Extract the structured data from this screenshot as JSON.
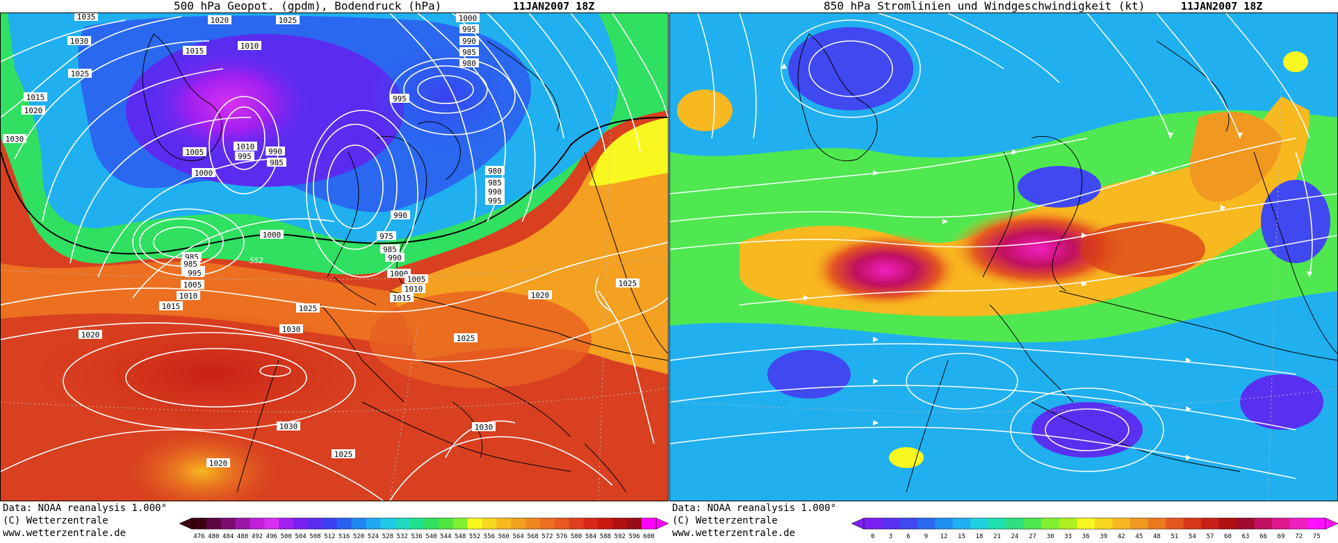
{
  "left": {
    "title": "500 hPa Geopot. (gpdm), Bodendruck (hPa)",
    "date": "11JAN2007 18Z",
    "footer": {
      "data_source": "Data: NOAA reanalysis 1.000°",
      "copyright": "(C) Wetterzentrale",
      "url": "www.wetterzentrale.de"
    },
    "colorbar": {
      "ticks": [
        "476",
        "480",
        "484",
        "488",
        "492",
        "496",
        "500",
        "504",
        "508",
        "512",
        "516",
        "520",
        "524",
        "528",
        "532",
        "536",
        "540",
        "544",
        "548",
        "552",
        "556",
        "560",
        "564",
        "568",
        "572",
        "576",
        "580",
        "584",
        "588",
        "592",
        "596",
        "600"
      ],
      "colors": [
        "#3a0010",
        "#5a0640",
        "#7a0c70",
        "#9a18a8",
        "#c020d8",
        "#d830f0",
        "#a020f0",
        "#7a20f0",
        "#5a2cf0",
        "#3a40f0",
        "#2a60f0",
        "#2088f0",
        "#20a8f0",
        "#20c8e8",
        "#20d8c0",
        "#20e090",
        "#30e060",
        "#50e840",
        "#80f030",
        "#f8f820",
        "#f8d820",
        "#f8b820",
        "#f4a020",
        "#f08820",
        "#ec7020",
        "#e85820",
        "#e04020",
        "#d82818",
        "#c81810",
        "#b01010",
        "#980c18",
        "#ff00ff"
      ]
    },
    "isobars": [
      "1035",
      "1020",
      "1025",
      "1000",
      "995",
      "990",
      "985",
      "980",
      "1030",
      "1010",
      "1015",
      "1025",
      "1015",
      "1020",
      "1030",
      "1005",
      "1010",
      "995",
      "990",
      "1000",
      "1000",
      "985",
      "995",
      "985",
      "980",
      "985",
      "990",
      "995",
      "1000",
      "975",
      "985",
      "990",
      "985",
      "990",
      "995",
      "1005",
      "1010",
      "1015",
      "1020",
      "1025",
      "1030",
      "1025",
      "1020",
      "1000",
      "1005",
      "1010",
      "1015",
      "1025",
      "1030",
      "1030",
      "1020",
      "1025",
      "552"
    ]
  },
  "right": {
    "title": "850 hPa Stromlinien und Windgeschwindigkeit (kt)",
    "date": "11JAN2007 18Z",
    "footer": {
      "data_source": "Data: NOAA reanalysis 1.000°",
      "copyright": "(C) Wetterzentrale",
      "url": "www.wetterzentrale.de"
    },
    "colorbar": {
      "ticks": [
        "0",
        "3",
        "6",
        "9",
        "12",
        "15",
        "18",
        "21",
        "24",
        "27",
        "30",
        "33",
        "36",
        "39",
        "42",
        "45",
        "48",
        "51",
        "54",
        "57",
        "60",
        "63",
        "66",
        "69",
        "72",
        "75"
      ],
      "colors": [
        "#7a20f0",
        "#5a30f0",
        "#4048f0",
        "#2a68f0",
        "#2090f0",
        "#20b0f0",
        "#20d0e0",
        "#20e0b0",
        "#30e080",
        "#50e850",
        "#80f030",
        "#b0f020",
        "#f8f820",
        "#f8d820",
        "#f8b820",
        "#f09820",
        "#ec7820",
        "#e45820",
        "#d83818",
        "#c82018",
        "#b01010",
        "#a00c30",
        "#c01060",
        "#e01890",
        "#f020c0",
        "#ff10ff"
      ]
    }
  }
}
